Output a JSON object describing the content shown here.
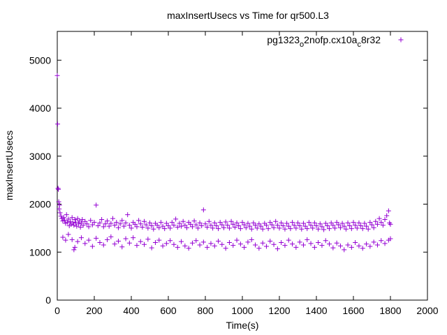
{
  "chart_data": {
    "type": "scatter",
    "title": "maxInsertUsecs vs Time for qr500.L3",
    "xlabel": "Time(s)",
    "ylabel": "maxInsertUsecs",
    "xlim": [
      0,
      2000
    ],
    "ylim": [
      0,
      5600
    ],
    "x_ticks": [
      0,
      200,
      400,
      600,
      800,
      1000,
      1200,
      1400,
      1600,
      1800,
      2000
    ],
    "y_ticks": [
      0,
      1000,
      2000,
      3000,
      4000,
      5000
    ],
    "grid": false,
    "legend_position": "top-right",
    "marker": "plus",
    "color": "#9400d3",
    "series": [
      {
        "name": "pg1323_o2nofp.cx10a_c8r32",
        "legend_parts": [
          {
            "text": "pg1323",
            "sub": false
          },
          {
            "text": "o",
            "sub": true
          },
          {
            "text": "2nofp.cx10a",
            "sub": false
          },
          {
            "text": "c",
            "sub": true
          },
          {
            "text": "8r32",
            "sub": false
          }
        ],
        "points": [
          [
            0,
            4680
          ],
          [
            2,
            3670
          ],
          [
            4,
            2330
          ],
          [
            6,
            2310
          ],
          [
            8,
            2050
          ],
          [
            10,
            1900
          ],
          [
            12,
            1980
          ],
          [
            15,
            1820
          ],
          [
            20,
            1750
          ],
          [
            25,
            1700
          ],
          [
            30,
            1650
          ],
          [
            35,
            1720
          ],
          [
            40,
            1660
          ],
          [
            45,
            1600
          ],
          [
            50,
            1780
          ],
          [
            55,
            1620
          ],
          [
            60,
            1690
          ],
          [
            65,
            1550
          ],
          [
            70,
            1640
          ],
          [
            75,
            1580
          ],
          [
            80,
            1720
          ],
          [
            85,
            1610
          ],
          [
            90,
            1560
          ],
          [
            95,
            1680
          ],
          [
            100,
            1620
          ],
          [
            105,
            1540
          ],
          [
            110,
            1700
          ],
          [
            115,
            1590
          ],
          [
            120,
            1650
          ],
          [
            125,
            1520
          ],
          [
            130,
            1610
          ],
          [
            135,
            1680
          ],
          [
            140,
            1560
          ],
          [
            150,
            1640
          ],
          [
            160,
            1590
          ],
          [
            170,
            1530
          ],
          [
            180,
            1660
          ],
          [
            190,
            1570
          ],
          [
            200,
            1620
          ],
          [
            210,
            1980
          ],
          [
            220,
            1550
          ],
          [
            230,
            1610
          ],
          [
            240,
            1680
          ],
          [
            250,
            1530
          ],
          [
            260,
            1590
          ],
          [
            270,
            1650
          ],
          [
            280,
            1540
          ],
          [
            290,
            1600
          ],
          [
            300,
            1700
          ],
          [
            310,
            1560
          ],
          [
            320,
            1620
          ],
          [
            330,
            1510
          ],
          [
            340,
            1590
          ],
          [
            350,
            1660
          ],
          [
            360,
            1540
          ],
          [
            370,
            1610
          ],
          [
            380,
            1780
          ],
          [
            390,
            1560
          ],
          [
            400,
            1500
          ],
          [
            410,
            1620
          ],
          [
            420,
            1580
          ],
          [
            430,
            1530
          ],
          [
            440,
            1660
          ],
          [
            450,
            1590
          ],
          [
            460,
            1520
          ],
          [
            470,
            1640
          ],
          [
            480,
            1570
          ],
          [
            490,
            1500
          ],
          [
            500,
            1610
          ],
          [
            510,
            1550
          ],
          [
            520,
            1480
          ],
          [
            530,
            1600
          ],
          [
            540,
            1560
          ],
          [
            550,
            1510
          ],
          [
            560,
            1620
          ],
          [
            570,
            1540
          ],
          [
            580,
            1490
          ],
          [
            590,
            1600
          ],
          [
            600,
            1550
          ],
          [
            610,
            1500
          ],
          [
            620,
            1620
          ],
          [
            630,
            1560
          ],
          [
            640,
            1690
          ],
          [
            650,
            1520
          ],
          [
            660,
            1600
          ],
          [
            670,
            1540
          ],
          [
            680,
            1640
          ],
          [
            690,
            1560
          ],
          [
            700,
            1510
          ],
          [
            710,
            1620
          ],
          [
            720,
            1580
          ],
          [
            730,
            1530
          ],
          [
            740,
            1650
          ],
          [
            750,
            1570
          ],
          [
            760,
            1500
          ],
          [
            770,
            1610
          ],
          [
            780,
            1550
          ],
          [
            790,
            1880
          ],
          [
            800,
            1590
          ],
          [
            810,
            1520
          ],
          [
            820,
            1640
          ],
          [
            830,
            1560
          ],
          [
            840,
            1500
          ],
          [
            850,
            1610
          ],
          [
            860,
            1550
          ],
          [
            870,
            1490
          ],
          [
            880,
            1620
          ],
          [
            890,
            1570
          ],
          [
            900,
            1510
          ],
          [
            910,
            1630
          ],
          [
            920,
            1560
          ],
          [
            930,
            1500
          ],
          [
            940,
            1640
          ],
          [
            950,
            1580
          ],
          [
            960,
            1520
          ],
          [
            970,
            1610
          ],
          [
            980,
            1550
          ],
          [
            990,
            1490
          ],
          [
            1000,
            1620
          ],
          [
            1010,
            1570
          ],
          [
            1020,
            1510
          ],
          [
            1030,
            1600
          ],
          [
            1040,
            1540
          ],
          [
            1050,
            1480
          ],
          [
            1060,
            1610
          ],
          [
            1070,
            1560
          ],
          [
            1080,
            1500
          ],
          [
            1090,
            1590
          ],
          [
            1100,
            1540
          ],
          [
            1110,
            1480
          ],
          [
            1120,
            1600
          ],
          [
            1130,
            1560
          ],
          [
            1140,
            1490
          ],
          [
            1150,
            1620
          ],
          [
            1160,
            1570
          ],
          [
            1170,
            1510
          ],
          [
            1180,
            1640
          ],
          [
            1190,
            1560
          ],
          [
            1200,
            1500
          ],
          [
            1210,
            1610
          ],
          [
            1220,
            1550
          ],
          [
            1230,
            1480
          ],
          [
            1240,
            1600
          ],
          [
            1250,
            1540
          ],
          [
            1260,
            1490
          ],
          [
            1270,
            1620
          ],
          [
            1280,
            1560
          ],
          [
            1290,
            1500
          ],
          [
            1300,
            1610
          ],
          [
            1310,
            1550
          ],
          [
            1320,
            1480
          ],
          [
            1330,
            1600
          ],
          [
            1340,
            1540
          ],
          [
            1350,
            1490
          ],
          [
            1360,
            1620
          ],
          [
            1370,
            1560
          ],
          [
            1380,
            1500
          ],
          [
            1390,
            1610
          ],
          [
            1400,
            1550
          ],
          [
            1410,
            1480
          ],
          [
            1420,
            1590
          ],
          [
            1430,
            1530
          ],
          [
            1440,
            1470
          ],
          [
            1450,
            1600
          ],
          [
            1460,
            1550
          ],
          [
            1470,
            1490
          ],
          [
            1480,
            1610
          ],
          [
            1490,
            1560
          ],
          [
            1500,
            1500
          ],
          [
            1510,
            1620
          ],
          [
            1520,
            1570
          ],
          [
            1530,
            1510
          ],
          [
            1540,
            1600
          ],
          [
            1550,
            1540
          ],
          [
            1560,
            1480
          ],
          [
            1570,
            1610
          ],
          [
            1580,
            1550
          ],
          [
            1590,
            1490
          ],
          [
            1600,
            1620
          ],
          [
            1610,
            1560
          ],
          [
            1620,
            1500
          ],
          [
            1630,
            1610
          ],
          [
            1640,
            1550
          ],
          [
            1650,
            1490
          ],
          [
            1660,
            1600
          ],
          [
            1670,
            1540
          ],
          [
            1680,
            1480
          ],
          [
            1690,
            1620
          ],
          [
            1700,
            1570
          ],
          [
            1710,
            1510
          ],
          [
            1720,
            1640
          ],
          [
            1730,
            1580
          ],
          [
            1740,
            1700
          ],
          [
            1750,
            1620
          ],
          [
            1760,
            1560
          ],
          [
            1770,
            1680
          ],
          [
            1780,
            1760
          ],
          [
            1790,
            1860
          ],
          [
            1795,
            1610
          ],
          [
            1800,
            1580
          ],
          [
            30,
            1310
          ],
          [
            45,
            1250
          ],
          [
            60,
            1370
          ],
          [
            80,
            1260
          ],
          [
            90,
            1050
          ],
          [
            95,
            1100
          ],
          [
            110,
            1220
          ],
          [
            130,
            1300
          ],
          [
            150,
            1180
          ],
          [
            170,
            1250
          ],
          [
            190,
            1120
          ],
          [
            210,
            1290
          ],
          [
            230,
            1200
          ],
          [
            250,
            1150
          ],
          [
            270,
            1260
          ],
          [
            290,
            1320
          ],
          [
            310,
            1170
          ],
          [
            330,
            1230
          ],
          [
            350,
            1110
          ],
          [
            370,
            1280
          ],
          [
            390,
            1190
          ],
          [
            410,
            1300
          ],
          [
            430,
            1140
          ],
          [
            450,
            1220
          ],
          [
            470,
            1160
          ],
          [
            490,
            1270
          ],
          [
            510,
            1090
          ],
          [
            530,
            1200
          ],
          [
            550,
            1250
          ],
          [
            570,
            1130
          ],
          [
            590,
            1180
          ],
          [
            610,
            1240
          ],
          [
            630,
            1160
          ],
          [
            650,
            1100
          ],
          [
            670,
            1220
          ],
          [
            690,
            1130
          ],
          [
            710,
            1080
          ],
          [
            730,
            1190
          ],
          [
            750,
            1240
          ],
          [
            770,
            1150
          ],
          [
            790,
            1210
          ],
          [
            810,
            1100
          ],
          [
            830,
            1180
          ],
          [
            850,
            1130
          ],
          [
            870,
            1230
          ],
          [
            890,
            1160
          ],
          [
            910,
            1080
          ],
          [
            930,
            1200
          ],
          [
            950,
            1140
          ],
          [
            970,
            1250
          ],
          [
            990,
            1170
          ],
          [
            1010,
            1100
          ],
          [
            1030,
            1210
          ],
          [
            1050,
            1260
          ],
          [
            1070,
            1150
          ],
          [
            1090,
            1080
          ],
          [
            1110,
            1190
          ],
          [
            1130,
            1120
          ],
          [
            1150,
            1230
          ],
          [
            1170,
            1160
          ],
          [
            1190,
            1070
          ],
          [
            1210,
            1200
          ],
          [
            1230,
            1140
          ],
          [
            1250,
            1250
          ],
          [
            1270,
            1170
          ],
          [
            1290,
            1100
          ],
          [
            1310,
            1210
          ],
          [
            1330,
            1150
          ],
          [
            1350,
            1260
          ],
          [
            1370,
            1180
          ],
          [
            1390,
            1100
          ],
          [
            1410,
            1200
          ],
          [
            1430,
            1140
          ],
          [
            1450,
            1240
          ],
          [
            1470,
            1170
          ],
          [
            1490,
            1090
          ],
          [
            1510,
            1190
          ],
          [
            1530,
            1130
          ],
          [
            1550,
            1050
          ],
          [
            1570,
            1150
          ],
          [
            1590,
            1100
          ],
          [
            1610,
            1200
          ],
          [
            1630,
            1130
          ],
          [
            1650,
            1080
          ],
          [
            1670,
            1170
          ],
          [
            1690,
            1120
          ],
          [
            1710,
            1210
          ],
          [
            1730,
            1150
          ],
          [
            1750,
            1240
          ],
          [
            1770,
            1180
          ],
          [
            1790,
            1250
          ],
          [
            1800,
            1280
          ]
        ]
      }
    ]
  }
}
